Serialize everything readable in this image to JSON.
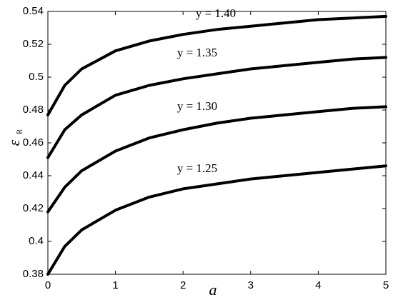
{
  "chart_data": {
    "type": "line",
    "xlabel": "a",
    "ylabel": "ε",
    "ylabel_subscript": "R",
    "x": [
      0,
      0.25,
      0.5,
      1,
      1.5,
      2,
      2.5,
      3,
      3.5,
      4,
      4.5,
      5
    ],
    "series": [
      {
        "name": "y = 1.40",
        "color": "#000000",
        "values": [
          0.477,
          0.495,
          0.505,
          0.516,
          0.522,
          0.526,
          0.529,
          0.531,
          0.533,
          0.535,
          0.536,
          0.537
        ]
      },
      {
        "name": "y = 1.35",
        "color": "#000000",
        "values": [
          0.451,
          0.468,
          0.477,
          0.489,
          0.495,
          0.499,
          0.502,
          0.505,
          0.507,
          0.509,
          0.511,
          0.512
        ]
      },
      {
        "name": "y = 1.30",
        "color": "#000000",
        "values": [
          0.418,
          0.433,
          0.443,
          0.455,
          0.463,
          0.468,
          0.472,
          0.475,
          0.477,
          0.479,
          0.481,
          0.482
        ]
      },
      {
        "name": "y = 1.25",
        "color": "#000000",
        "values": [
          0.38,
          0.397,
          0.407,
          0.419,
          0.427,
          0.432,
          0.435,
          0.438,
          0.44,
          0.442,
          0.444,
          0.446
        ]
      }
    ],
    "xlim": [
      0,
      5
    ],
    "xticks": [
      0,
      1,
      2,
      3,
      4,
      5
    ],
    "ylim": [
      0.38,
      0.54
    ],
    "yticks": [
      0.38,
      0.4,
      0.42,
      0.44,
      0.46,
      0.48,
      0.5,
      0.52,
      0.54
    ],
    "grid": false
  }
}
